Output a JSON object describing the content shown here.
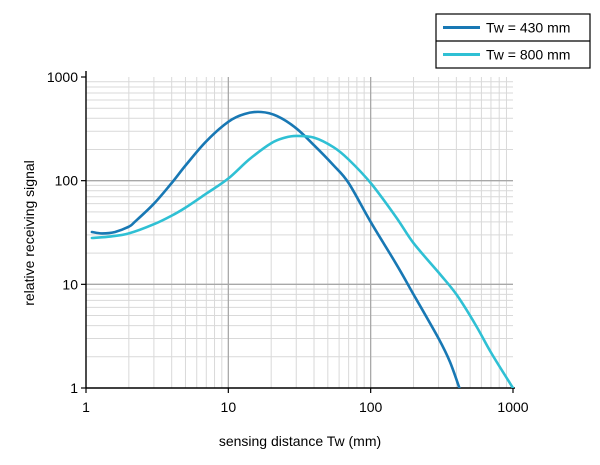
{
  "chart_data": {
    "type": "line",
    "xscale": "log",
    "yscale": "log",
    "xlabel": "sensing distance Tw (mm)",
    "ylabel": "relative receiving signal",
    "xlim": [
      1,
      1000
    ],
    "ylim": [
      1,
      1000
    ],
    "xticks": [
      "1",
      "10",
      "100",
      "1000"
    ],
    "yticks": [
      "1",
      "10",
      "100",
      "1000"
    ],
    "grid": true,
    "legend": "top-right",
    "series": [
      {
        "name": "Tw = 430 mm",
        "color": "#1878b4",
        "points": [
          [
            1.1,
            32
          ],
          [
            1.3,
            31
          ],
          [
            1.6,
            32
          ],
          [
            2.0,
            36
          ],
          [
            2.2,
            40
          ],
          [
            3.0,
            60
          ],
          [
            4.0,
            95
          ],
          [
            5.0,
            140
          ],
          [
            7.0,
            240
          ],
          [
            10.0,
            370
          ],
          [
            13.0,
            440
          ],
          [
            17.0,
            460
          ],
          [
            22.0,
            420
          ],
          [
            30.0,
            320
          ],
          [
            40.0,
            220
          ],
          [
            55.0,
            140
          ],
          [
            70.0,
            95
          ],
          [
            100.0,
            40
          ],
          [
            150.0,
            16
          ],
          [
            200.0,
            8
          ],
          [
            300.0,
            3
          ],
          [
            360.0,
            1.8
          ],
          [
            420.0,
            1.0
          ]
        ]
      },
      {
        "name": "Tw = 800 mm",
        "color": "#2fc0d4",
        "points": [
          [
            1.1,
            28
          ],
          [
            1.5,
            29
          ],
          [
            2.0,
            31
          ],
          [
            3.0,
            38
          ],
          [
            4.0,
            46
          ],
          [
            5.0,
            55
          ],
          [
            7.0,
            75
          ],
          [
            10.0,
            105
          ],
          [
            14.0,
            160
          ],
          [
            20.0,
            230
          ],
          [
            25.0,
            260
          ],
          [
            30.0,
            270
          ],
          [
            40.0,
            260
          ],
          [
            55.0,
            210
          ],
          [
            70.0,
            160
          ],
          [
            100.0,
            95
          ],
          [
            150.0,
            45
          ],
          [
            200.0,
            25
          ],
          [
            300.0,
            13
          ],
          [
            400.0,
            8
          ],
          [
            550.0,
            4
          ],
          [
            700.0,
            2.2
          ],
          [
            1000.0,
            1.0
          ]
        ]
      }
    ]
  }
}
